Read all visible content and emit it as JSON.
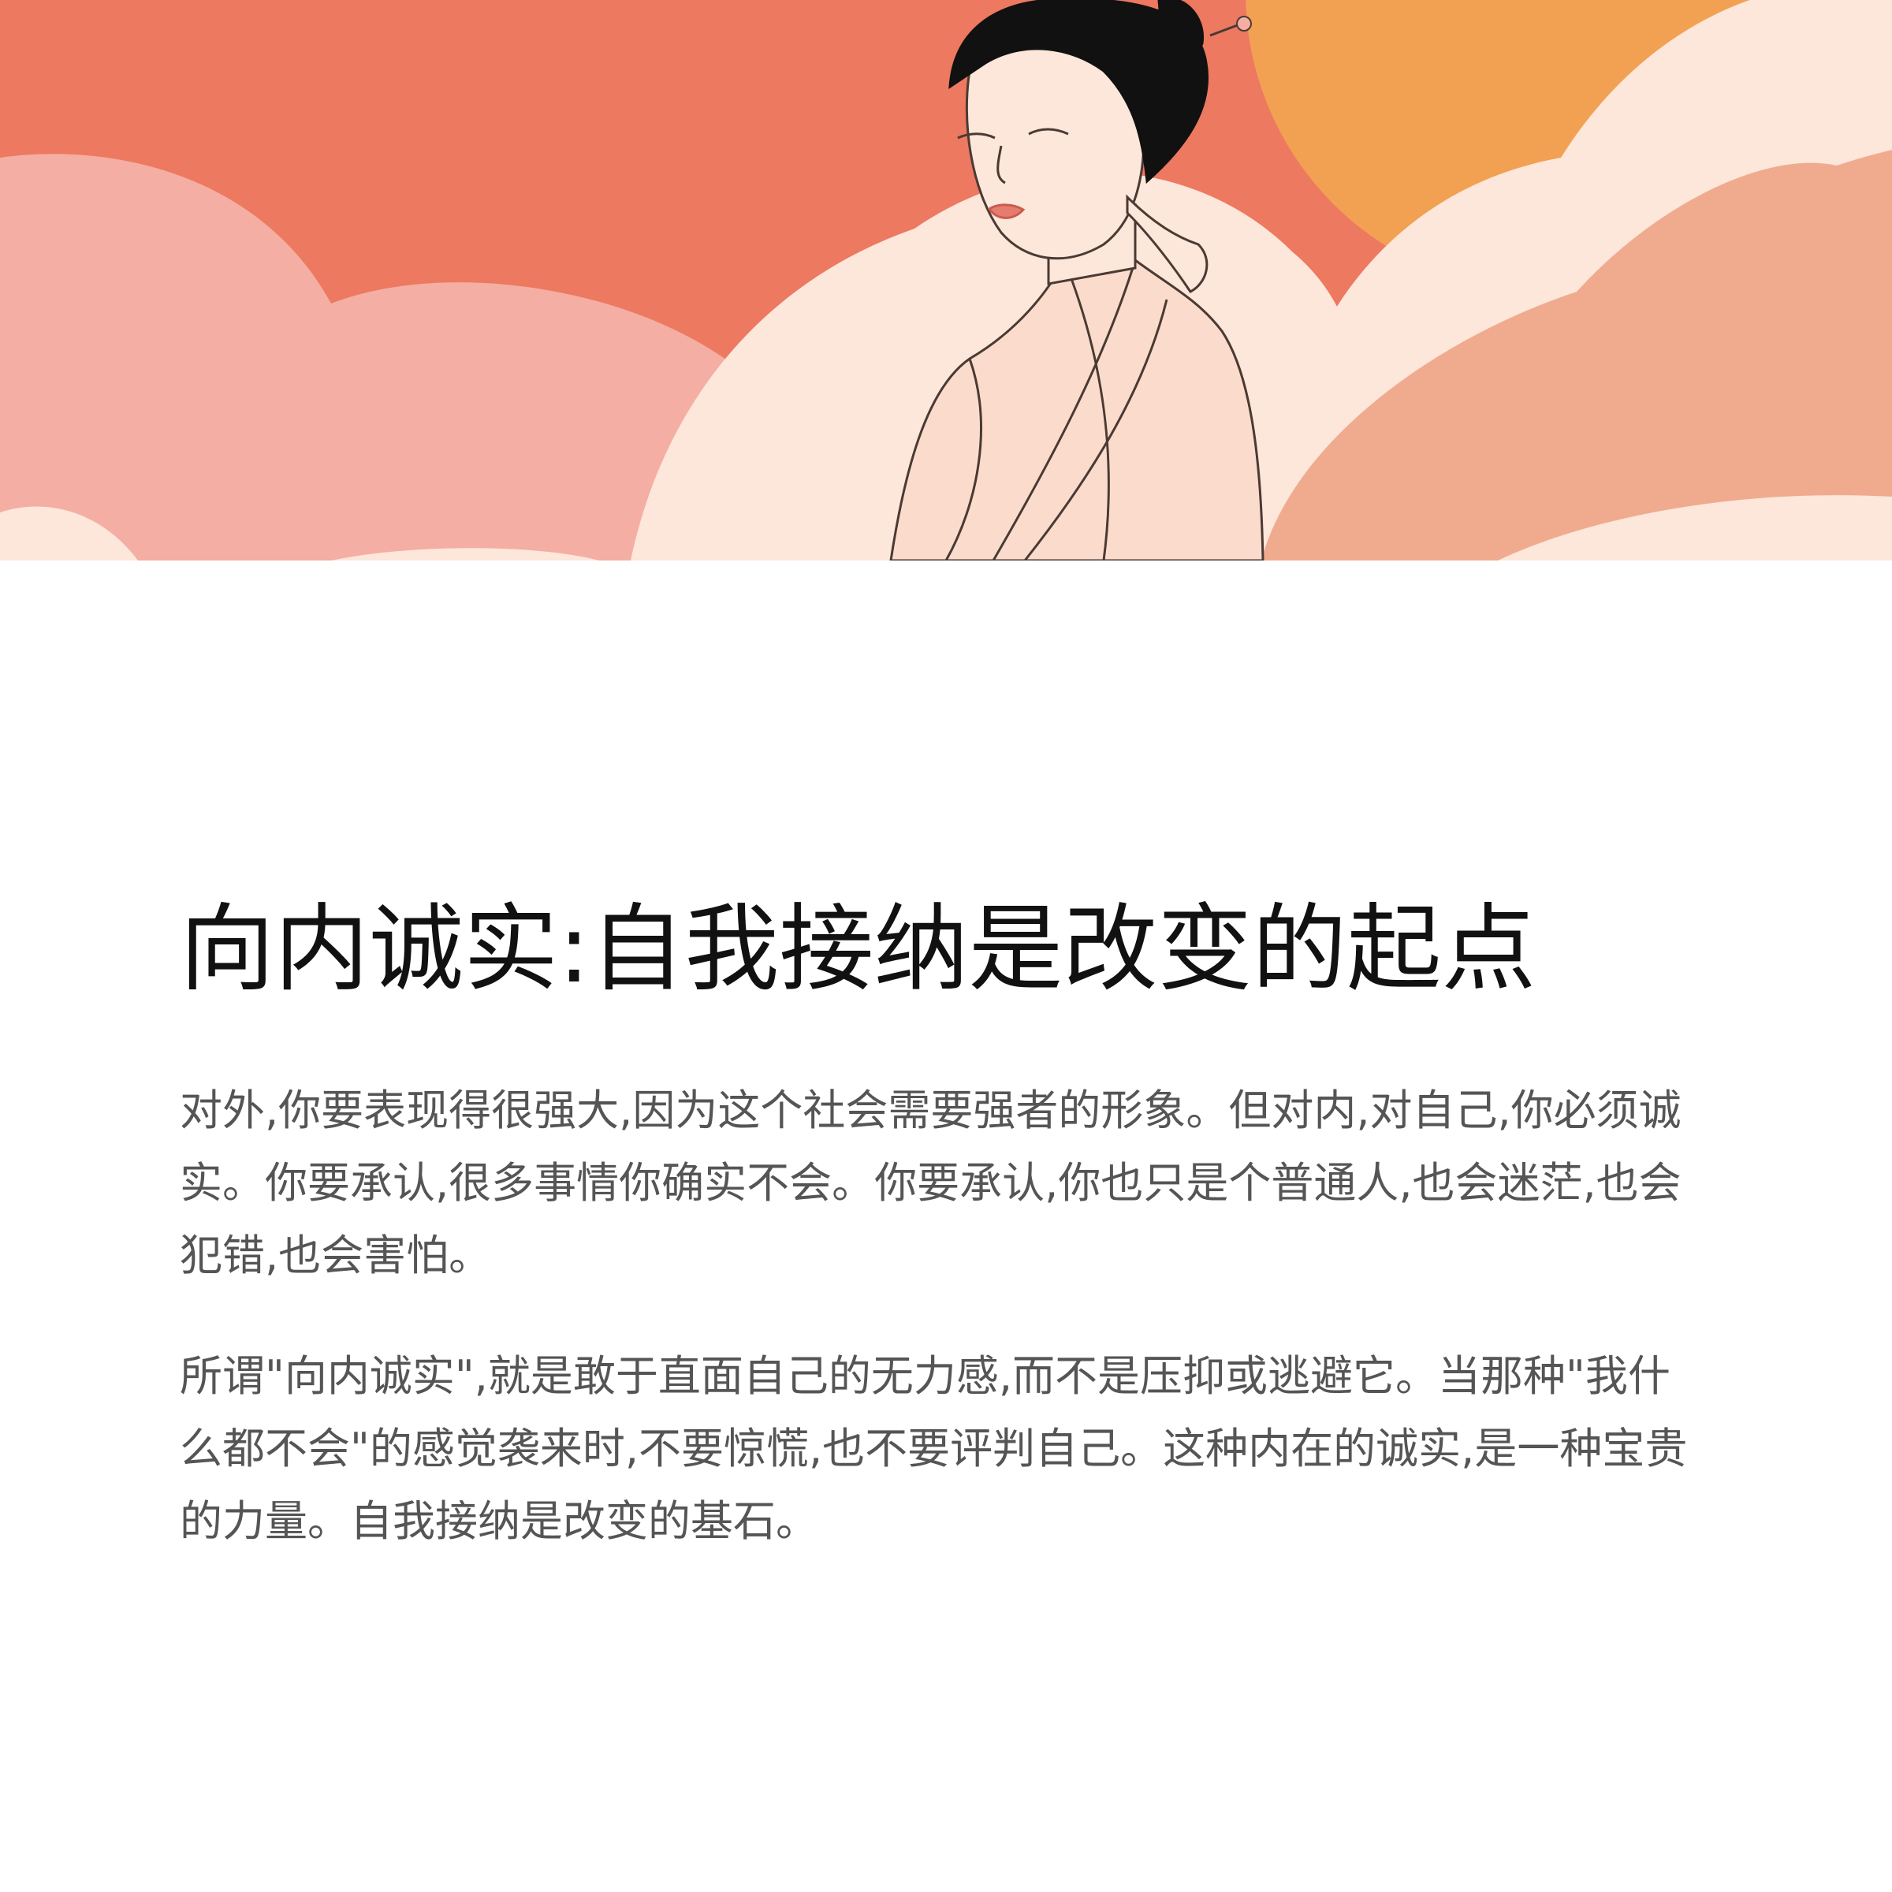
{
  "article": {
    "title": "向内诚实:自我接纳是改变的起点",
    "paragraphs": [
      "对外,你要表现得很强大,因为这个社会需要强者的形象。但对内,对自己,你必须诚实。你要承认,很多事情你确实不会。你要承认,你也只是个普通人,也会迷茫,也会犯错,也会害怕。",
      "所谓\"向内诚实\",就是敢于直面自己的无力感,而不是压抑或逃避它。当那种\"我什么都不会\"的感觉袭来时,不要惊慌,也不要评判自己。这种内在的诚实,是一种宝贵的力量。自我接纳是改变的基石。"
    ]
  },
  "colors": {
    "background": "#ffffff",
    "title_text": "#111111",
    "body_text": "#555555",
    "sky_coral": "#ec7960",
    "sun_orange": "#f2a152",
    "cloud_pink": "#f4aea3",
    "cloud_cream": "#fde6da",
    "cloud_peach": "#f0ab8f"
  },
  "illustration": {
    "subject": "woman-in-hanfu-with-closed-eyes",
    "icons": [
      "cloud-icon",
      "sun-icon",
      "hairpin-icon"
    ]
  }
}
